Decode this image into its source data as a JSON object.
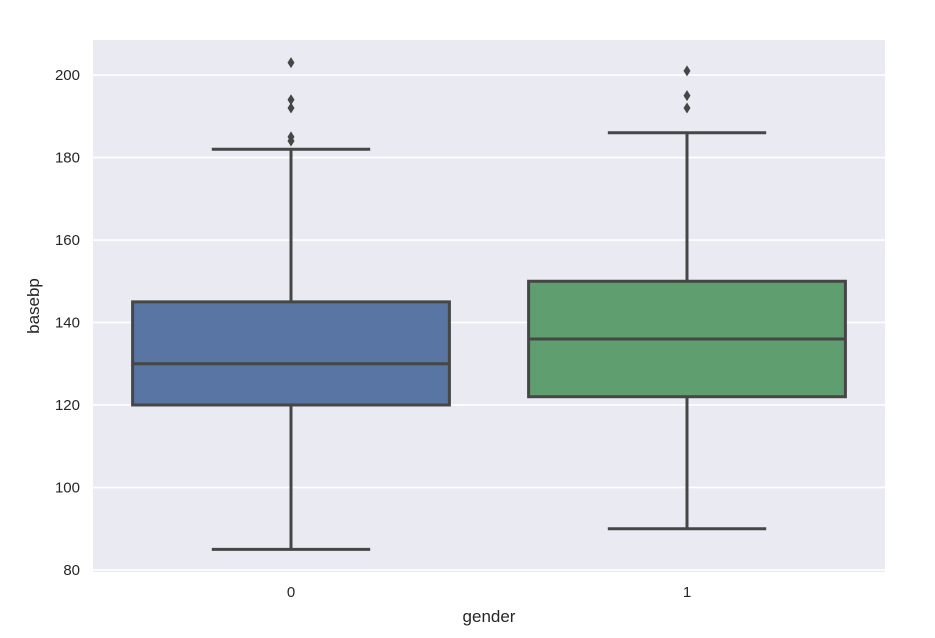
{
  "chart_data": {
    "type": "boxplot",
    "xlabel": "gender",
    "ylabel": "basebp",
    "ylim": [
      79.5,
      208.5
    ],
    "yticks": [
      80,
      100,
      120,
      140,
      160,
      180,
      200
    ],
    "grid": true,
    "categories": [
      "0",
      "1"
    ],
    "boxes": [
      {
        "category": "0",
        "whisker_low": 85,
        "q1": 120,
        "median": 130,
        "q3": 145,
        "whisker_high": 182,
        "outliers": [
          184,
          185,
          192,
          194,
          203
        ],
        "color": "#5975a4"
      },
      {
        "category": "1",
        "whisker_low": 90,
        "q1": 122,
        "median": 136,
        "q3": 150,
        "whisker_high": 186,
        "outliers": [
          192,
          195,
          201
        ],
        "color": "#5f9e6e"
      }
    ]
  },
  "colors": {
    "plot_background": "#eaeaf2",
    "grid": "#ffffff",
    "box_edge": "#464646"
  }
}
